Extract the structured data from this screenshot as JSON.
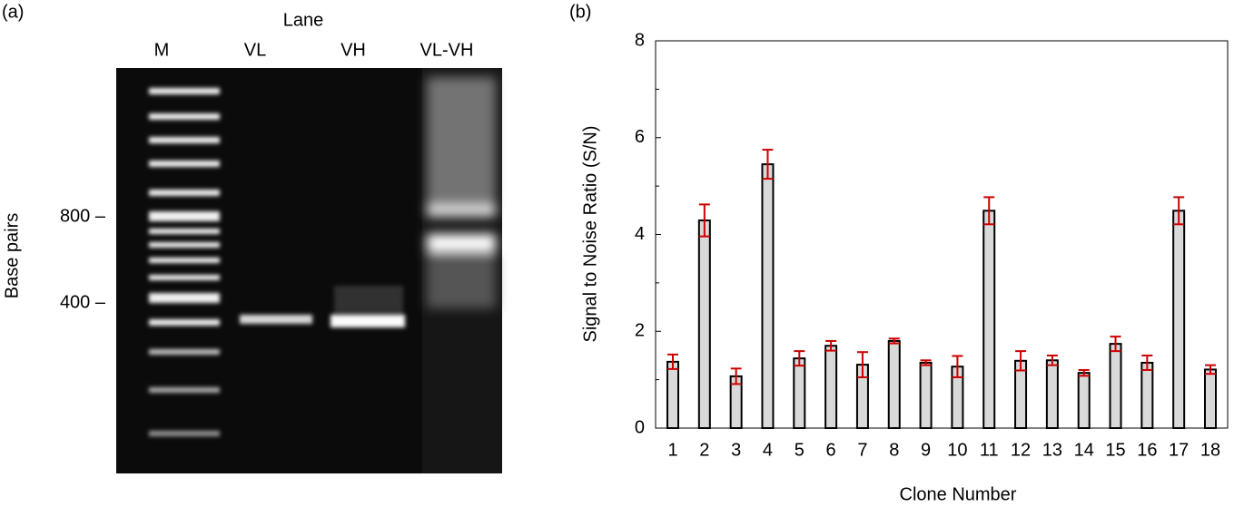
{
  "gel": {
    "panel_label": "(a)",
    "lane_title": "Lane",
    "lanes": [
      "M",
      "VL",
      "VH",
      "VL-VH"
    ],
    "y_title": "Base pairs",
    "marker_labels": [
      "800 –",
      "400 –"
    ]
  },
  "chart_data": {
    "type": "bar",
    "panel_label": "(b)",
    "x_label": "Clone Number",
    "y_label": "Signal to Noise Ratio (S/N)",
    "categories": [
      "1",
      "2",
      "3",
      "4",
      "5",
      "6",
      "7",
      "8",
      "9",
      "10",
      "11",
      "12",
      "13",
      "14",
      "15",
      "16",
      "17",
      "18"
    ],
    "values": [
      1.37,
      4.29,
      1.07,
      5.45,
      1.44,
      1.7,
      1.31,
      1.8,
      1.35,
      1.27,
      4.49,
      1.39,
      1.4,
      1.14,
      1.74,
      1.35,
      4.49,
      1.21
    ],
    "errors": [
      0.15,
      0.33,
      0.16,
      0.3,
      0.15,
      0.1,
      0.26,
      0.05,
      0.05,
      0.22,
      0.28,
      0.2,
      0.1,
      0.06,
      0.15,
      0.15,
      0.28,
      0.09
    ],
    "color": "#d9d9d9",
    "error_color": "#cc0000",
    "ylim": [
      0,
      8
    ],
    "yticks": [
      0,
      2,
      4,
      6,
      8
    ],
    "yminorticks": [
      1,
      3,
      5,
      7
    ]
  }
}
